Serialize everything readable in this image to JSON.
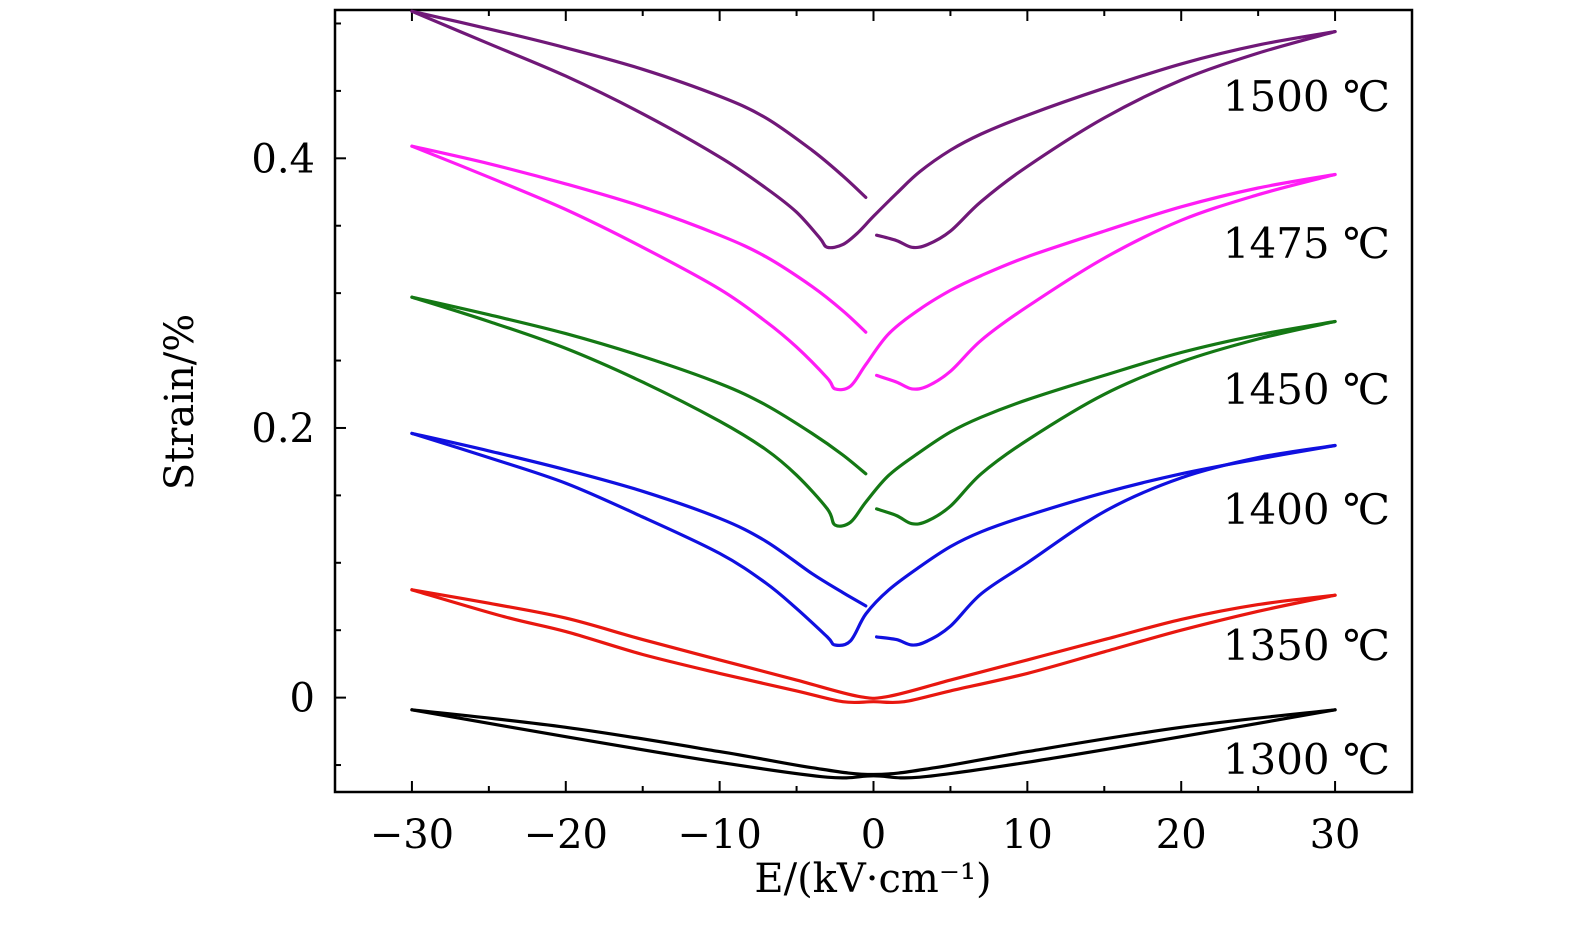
{
  "chart_data": {
    "type": "line",
    "title": "",
    "xlabel": "E/(kV·cm⁻¹)",
    "ylabel": "Strain/%",
    "xlim": [
      -35,
      35
    ],
    "ylim": [
      -0.07,
      0.51
    ],
    "xticks": [
      -30,
      -20,
      -10,
      0,
      10,
      20,
      30
    ],
    "xtick_labels": [
      "−30",
      "−20",
      "−10",
      "0",
      "10",
      "20",
      "30"
    ],
    "yticks": [
      0,
      0.2,
      0.4
    ],
    "ytick_labels": [
      "0",
      "0.2",
      "0.4"
    ],
    "grid": false,
    "series": [
      {
        "name": "1300 ℃",
        "color": "#000000",
        "outer": [
          [
            -30,
            -0.009
          ],
          [
            -20,
            -0.029
          ],
          [
            -10,
            -0.048
          ],
          [
            -3,
            -0.059
          ],
          [
            0,
            -0.058
          ],
          [
            3,
            -0.059
          ],
          [
            10,
            -0.048
          ],
          [
            20,
            -0.029
          ],
          [
            30,
            -0.009
          ]
        ],
        "inner": [
          [
            -30,
            -0.009
          ],
          [
            -20,
            -0.022
          ],
          [
            -10,
            -0.04
          ],
          [
            -4,
            -0.052
          ],
          [
            0,
            -0.057
          ],
          [
            4,
            -0.052
          ],
          [
            10,
            -0.04
          ],
          [
            20,
            -0.022
          ],
          [
            30,
            -0.009
          ]
        ]
      },
      {
        "name": "1350 ℃",
        "color": "#e8170f",
        "outer": [
          [
            -30,
            0.08
          ],
          [
            -24,
            0.06
          ],
          [
            -20,
            0.049
          ],
          [
            -15,
            0.032
          ],
          [
            -10,
            0.018
          ],
          [
            -5,
            0.005
          ],
          [
            -2,
            -0.003
          ],
          [
            0,
            -0.003
          ],
          [
            2,
            -0.003
          ],
          [
            5,
            0.005
          ],
          [
            10,
            0.018
          ],
          [
            15,
            0.034
          ],
          [
            20,
            0.05
          ],
          [
            25,
            0.064
          ],
          [
            30,
            0.076
          ]
        ],
        "inner": [
          [
            -30,
            0.08
          ],
          [
            -25,
            0.07
          ],
          [
            -20,
            0.059
          ],
          [
            -15,
            0.043
          ],
          [
            -10,
            0.028
          ],
          [
            -5,
            0.013
          ],
          [
            -1,
            0.001
          ],
          [
            1,
            0.001
          ],
          [
            5,
            0.013
          ],
          [
            10,
            0.028
          ],
          [
            15,
            0.043
          ],
          [
            20,
            0.058
          ],
          [
            25,
            0.069
          ],
          [
            30,
            0.076
          ]
        ]
      },
      {
        "name": "1400 ℃",
        "color": "#1010e0",
        "outer": [
          [
            -30,
            0.196
          ],
          [
            -25,
            0.178
          ],
          [
            -20,
            0.159
          ],
          [
            -15,
            0.134
          ],
          [
            -10,
            0.107
          ],
          [
            -7,
            0.085
          ],
          [
            -5,
            0.066
          ],
          [
            -3,
            0.045
          ],
          [
            -2.5,
            0.039
          ],
          [
            -1.5,
            0.042
          ],
          [
            -0.5,
            0.062
          ],
          [
            1,
            0.08
          ],
          [
            3,
            0.097
          ],
          [
            5,
            0.112
          ],
          [
            7,
            0.123
          ],
          [
            10,
            0.135
          ],
          [
            15,
            0.152
          ],
          [
            20,
            0.166
          ],
          [
            25,
            0.177
          ],
          [
            30,
            0.187
          ]
        ],
        "inner": [
          [
            -30,
            0.196
          ],
          [
            -25,
            0.183
          ],
          [
            -20,
            0.169
          ],
          [
            -15,
            0.153
          ],
          [
            -10,
            0.133
          ],
          [
            -7,
            0.116
          ],
          [
            -4,
            0.092
          ],
          [
            -2,
            0.078
          ],
          [
            -0.5,
            0.068
          ]
        ],
        "stub": [
          [
            0.2,
            0.045
          ],
          [
            1.5,
            0.043
          ],
          [
            2.5,
            0.039
          ],
          [
            3.5,
            0.042
          ],
          [
            5,
            0.053
          ],
          [
            7,
            0.077
          ],
          [
            10,
            0.1
          ],
          [
            15,
            0.138
          ],
          [
            20,
            0.163
          ],
          [
            25,
            0.178
          ],
          [
            30,
            0.187
          ]
        ]
      },
      {
        "name": "1450 ℃",
        "color": "#147814",
        "outer": [
          [
            -30,
            0.297
          ],
          [
            -25,
            0.279
          ],
          [
            -20,
            0.259
          ],
          [
            -15,
            0.234
          ],
          [
            -10,
            0.205
          ],
          [
            -7,
            0.184
          ],
          [
            -5,
            0.165
          ],
          [
            -3,
            0.14
          ],
          [
            -2.5,
            0.128
          ],
          [
            -1.5,
            0.13
          ],
          [
            -0.5,
            0.145
          ],
          [
            1,
            0.165
          ],
          [
            3,
            0.182
          ],
          [
            5,
            0.197
          ],
          [
            7,
            0.208
          ],
          [
            10,
            0.221
          ],
          [
            15,
            0.239
          ],
          [
            20,
            0.256
          ],
          [
            25,
            0.269
          ],
          [
            30,
            0.279
          ]
        ],
        "inner": [
          [
            -30,
            0.297
          ],
          [
            -25,
            0.284
          ],
          [
            -20,
            0.27
          ],
          [
            -15,
            0.253
          ],
          [
            -10,
            0.233
          ],
          [
            -7,
            0.217
          ],
          [
            -4,
            0.196
          ],
          [
            -2,
            0.18
          ],
          [
            -0.5,
            0.166
          ]
        ],
        "stub": [
          [
            0.2,
            0.14
          ],
          [
            1.5,
            0.135
          ],
          [
            2.5,
            0.129
          ],
          [
            3.5,
            0.131
          ],
          [
            5,
            0.142
          ],
          [
            7,
            0.166
          ],
          [
            10,
            0.191
          ],
          [
            15,
            0.225
          ],
          [
            20,
            0.249
          ],
          [
            25,
            0.266
          ],
          [
            30,
            0.279
          ]
        ]
      },
      {
        "name": "1475 ℃",
        "color": "#ff1cf5",
        "outer": [
          [
            -30,
            0.409
          ],
          [
            -25,
            0.386
          ],
          [
            -20,
            0.362
          ],
          [
            -15,
            0.334
          ],
          [
            -10,
            0.303
          ],
          [
            -7,
            0.279
          ],
          [
            -5,
            0.26
          ],
          [
            -3,
            0.237
          ],
          [
            -2.5,
            0.229
          ],
          [
            -1.5,
            0.231
          ],
          [
            -0.5,
            0.247
          ],
          [
            1,
            0.27
          ],
          [
            3,
            0.288
          ],
          [
            5,
            0.302
          ],
          [
            7,
            0.313
          ],
          [
            10,
            0.327
          ],
          [
            15,
            0.346
          ],
          [
            20,
            0.364
          ],
          [
            25,
            0.378
          ],
          [
            30,
            0.388
          ]
        ],
        "inner": [
          [
            -30,
            0.409
          ],
          [
            -25,
            0.396
          ],
          [
            -20,
            0.381
          ],
          [
            -15,
            0.364
          ],
          [
            -10,
            0.343
          ],
          [
            -7,
            0.327
          ],
          [
            -4,
            0.305
          ],
          [
            -2,
            0.287
          ],
          [
            -0.5,
            0.271
          ]
        ],
        "stub": [
          [
            0.2,
            0.239
          ],
          [
            1.5,
            0.234
          ],
          [
            2.5,
            0.229
          ],
          [
            3.5,
            0.231
          ],
          [
            5,
            0.242
          ],
          [
            7,
            0.265
          ],
          [
            10,
            0.29
          ],
          [
            15,
            0.326
          ],
          [
            20,
            0.354
          ],
          [
            25,
            0.373
          ],
          [
            30,
            0.388
          ]
        ]
      },
      {
        "name": "1500 ℃",
        "color": "#701878",
        "outer": [
          [
            -30,
            0.509
          ],
          [
            -25,
            0.485
          ],
          [
            -20,
            0.461
          ],
          [
            -15,
            0.433
          ],
          [
            -10,
            0.401
          ],
          [
            -7,
            0.378
          ],
          [
            -5,
            0.36
          ],
          [
            -3.5,
            0.341
          ],
          [
            -3,
            0.334
          ],
          [
            -2,
            0.336
          ],
          [
            -1,
            0.345
          ],
          [
            0,
            0.357
          ],
          [
            1.5,
            0.374
          ],
          [
            3,
            0.39
          ],
          [
            5,
            0.406
          ],
          [
            7,
            0.418
          ],
          [
            10,
            0.432
          ],
          [
            15,
            0.452
          ],
          [
            20,
            0.47
          ],
          [
            25,
            0.484
          ],
          [
            30,
            0.494
          ]
        ],
        "inner": [
          [
            -30,
            0.509
          ],
          [
            -25,
            0.496
          ],
          [
            -20,
            0.482
          ],
          [
            -15,
            0.466
          ],
          [
            -10,
            0.446
          ],
          [
            -7,
            0.43
          ],
          [
            -4,
            0.406
          ],
          [
            -2,
            0.387
          ],
          [
            -0.5,
            0.371
          ]
        ],
        "stub": [
          [
            0.2,
            0.343
          ],
          [
            1.5,
            0.339
          ],
          [
            2.5,
            0.334
          ],
          [
            3.5,
            0.336
          ],
          [
            5,
            0.346
          ],
          [
            7,
            0.368
          ],
          [
            10,
            0.394
          ],
          [
            15,
            0.43
          ],
          [
            20,
            0.458
          ],
          [
            25,
            0.478
          ],
          [
            30,
            0.494
          ]
        ]
      }
    ]
  }
}
